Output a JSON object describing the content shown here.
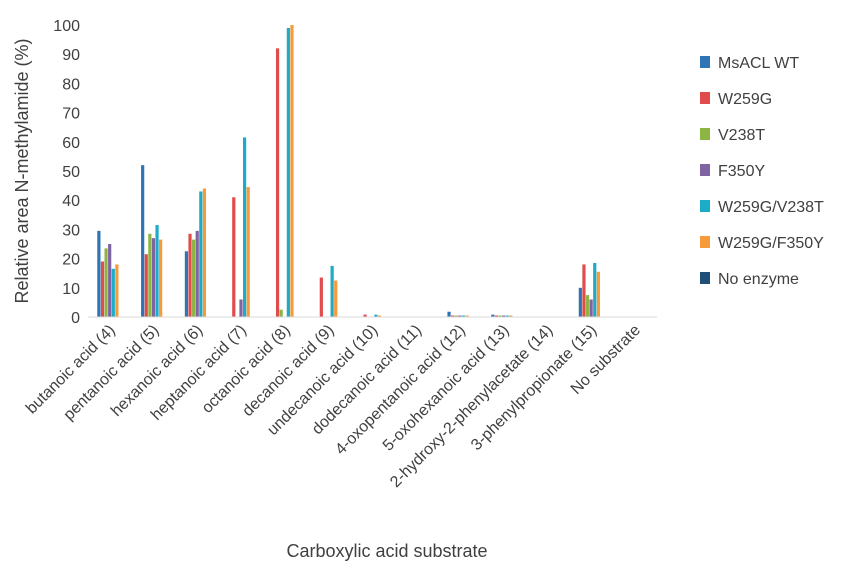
{
  "chart_data": {
    "type": "bar",
    "title": "",
    "xlabel": "Carboxylic acid substrate",
    "ylabel": "Relative area N-methylamide (%)",
    "ylim": [
      0,
      100
    ],
    "yticks": [
      0,
      10,
      20,
      30,
      40,
      50,
      60,
      70,
      80,
      90,
      100
    ],
    "grid": false,
    "legend_position": "right",
    "categories": [
      "butanoic acid (4)",
      "pentanoic acid (5)",
      "hexanoic acid (6)",
      "heptanoic acid (7)",
      "octanoic acid (8)",
      "decanoic acid (9)",
      "undecanoic acid (10)",
      "dodecanoic acid (11)",
      "4-oxopentanoic acid (12)",
      "5-oxohexanoic acid (13)",
      "2-hydroxy-2-phenylacetate (14)",
      "3-phenylpropionate (15)",
      "No substrate"
    ],
    "series": [
      {
        "name": "MsACL WT",
        "color": "#2E75B6",
        "values": [
          29.5,
          52,
          22.5,
          0,
          0,
          0,
          0,
          0,
          1.8,
          0.8,
          0,
          10,
          0
        ]
      },
      {
        "name": "W259G",
        "color": "#E04B4B",
        "values": [
          19,
          21.5,
          28.5,
          41,
          92,
          13.5,
          0.8,
          0,
          0.5,
          0.5,
          0,
          18,
          0
        ]
      },
      {
        "name": "V238T",
        "color": "#8CB544",
        "values": [
          23.5,
          28.5,
          26.5,
          0,
          2.5,
          0,
          0,
          0,
          0.5,
          0.5,
          0,
          7.5,
          0
        ]
      },
      {
        "name": "F350Y",
        "color": "#8064A2",
        "values": [
          25,
          27,
          29.5,
          6,
          0,
          0,
          0,
          0,
          0.5,
          0.5,
          0,
          6,
          0
        ]
      },
      {
        "name": "W259G/V238T",
        "color": "#1CACC8",
        "values": [
          16.5,
          31.5,
          43,
          61.5,
          99,
          17.5,
          0.8,
          0,
          0.5,
          0.5,
          0,
          18.5,
          0
        ]
      },
      {
        "name": "W259G/F350Y",
        "color": "#F79A3A",
        "values": [
          18,
          26.5,
          44,
          44.5,
          100,
          12.5,
          0.5,
          0,
          0.5,
          0.5,
          0,
          15.5,
          0
        ]
      },
      {
        "name": "No enzyme",
        "color": "#1F4E79",
        "values": [
          0,
          0,
          0,
          0,
          0,
          0,
          0,
          0,
          0,
          0,
          0,
          0,
          0
        ]
      }
    ]
  }
}
